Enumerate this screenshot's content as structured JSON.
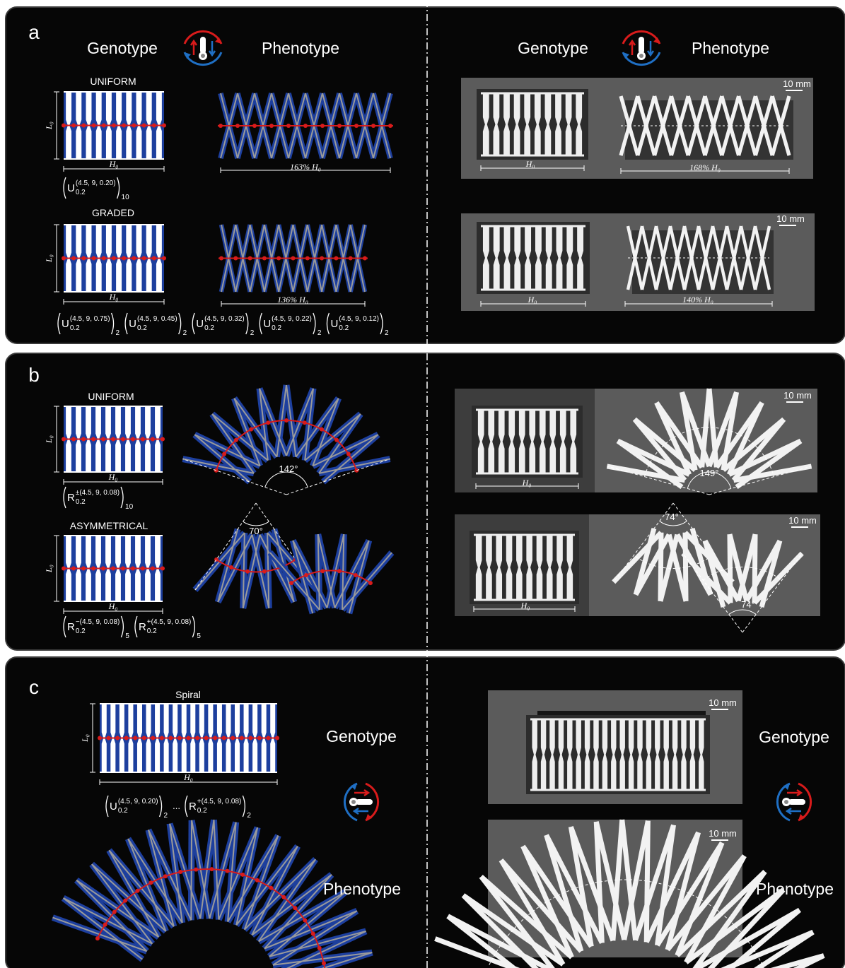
{
  "panel_a": {
    "label": "a",
    "headings": [
      "Genotype",
      "Phenotype",
      "Genotype",
      "Phenotype"
    ],
    "uniform": {
      "title": "UNIFORM",
      "length": "L₀",
      "width": "H₀",
      "formula": {
        "groups": [
          {
            "base": "U",
            "sub": "0.2",
            "sup": "(4.5, 9, 0.20)",
            "count": "10"
          }
        ]
      },
      "phenotype_width": "163% H₀"
    },
    "graded": {
      "title": "GRADED",
      "length": "L₀",
      "width": "H₀",
      "formula": {
        "groups": [
          {
            "base": "U",
            "sub": "0.2",
            "sup": "(4.5, 9, 0.75)",
            "count": "2"
          },
          {
            "base": "U",
            "sub": "0.2",
            "sup": "(4.5, 9, 0.45)",
            "count": "2"
          },
          {
            "base": "U",
            "sub": "0.2",
            "sup": "(4.5, 9, 0.32)",
            "count": "2"
          },
          {
            "base": "U",
            "sub": "0.2",
            "sup": "(4.5, 9, 0.22)",
            "count": "2"
          },
          {
            "base": "U",
            "sub": "0.2",
            "sup": "(4.5, 9, 0.12)",
            "count": "2"
          }
        ]
      },
      "phenotype_width": "136% H₀"
    },
    "photos": [
      {
        "scale": "10 mm",
        "width": "H₀",
        "phenotype_width": "168% H₀"
      },
      {
        "scale": "10 mm",
        "width": "H₀",
        "phenotype_width": "140% H₀"
      }
    ]
  },
  "panel_b": {
    "label": "b",
    "uniform": {
      "title": "UNIFORM",
      "length": "L₀",
      "width": "H₀",
      "formula": {
        "groups": [
          {
            "base": "R",
            "sub": "0.2",
            "sup": "±(4.5, 9, 0.08)",
            "count": "10"
          }
        ]
      },
      "angle": "142°"
    },
    "asymmetrical": {
      "title": "ASYMMETRICAL",
      "length": "L₀",
      "width": "H₀",
      "formula": {
        "groups": [
          {
            "base": "R",
            "sub": "0.2",
            "sup": "−(4.5, 9, 0.08)",
            "count": "5"
          },
          {
            "base": "R",
            "sub": "0.2",
            "sup": "+(4.5, 9, 0.08)",
            "count": "5"
          }
        ]
      },
      "angle": "70°"
    },
    "photos": [
      {
        "scale": "10 mm",
        "width": "H₀",
        "angle": "149°"
      },
      {
        "scale": "10 mm",
        "width": "H₀",
        "angles": [
          "74°",
          "74°"
        ]
      }
    ]
  },
  "panel_c": {
    "label": "c",
    "spiral": {
      "title": "Spiral",
      "length": "L₀",
      "width": "H₀",
      "formula": {
        "separator": "...",
        "groups": [
          {
            "base": "U",
            "sub": "0.2",
            "sup": "(4.5, 9, 0.20)",
            "count": "2"
          },
          {
            "base": "R",
            "sub": "0.2",
            "sup": "+(4.5, 9, 0.08)",
            "count": "2"
          }
        ]
      }
    },
    "headings": [
      "Genotype",
      "Phenotype",
      "Genotype",
      "Phenotype"
    ],
    "photos": [
      {
        "scale": "10 mm"
      },
      {
        "scale": "10 mm"
      }
    ]
  }
}
